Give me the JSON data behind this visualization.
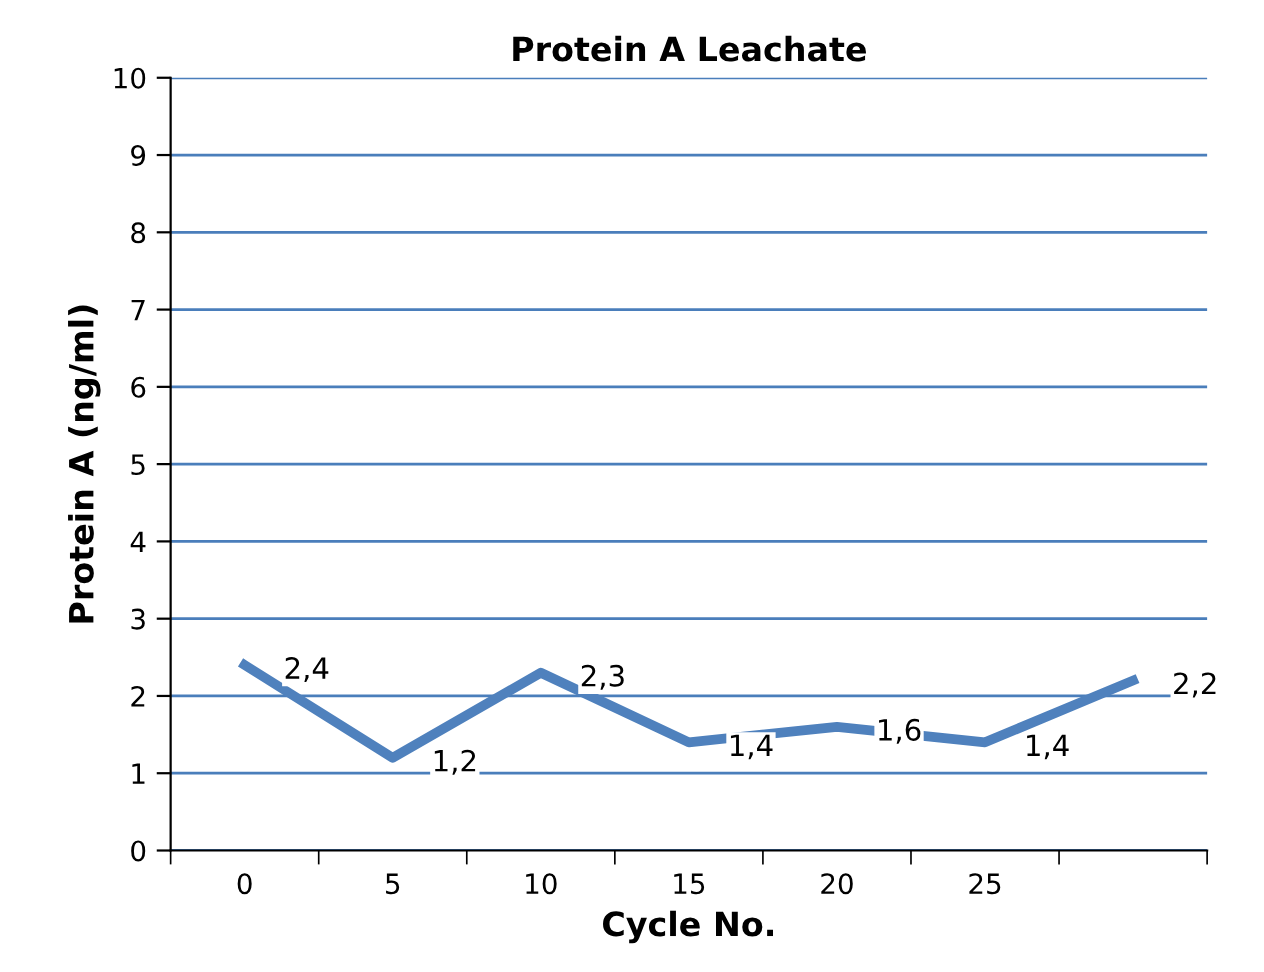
{
  "chart_data": {
    "type": "line",
    "title": "Protein A Leachate",
    "xlabel": "Cycle No.",
    "ylabel": "Protein A (ng/ml)",
    "categories": [
      "0",
      "5",
      "10",
      "15",
      "20",
      "25",
      null
    ],
    "series": [
      {
        "color": "#4f81bd",
        "values": [
          2.4,
          1.2,
          2.3,
          1.4,
          1.6,
          1.4,
          2.2
        ],
        "value_labels": [
          "2,4",
          "1,2",
          "2,3",
          "1,4",
          "1,6",
          "1,4",
          "2,2"
        ]
      }
    ],
    "ylim": [
      0,
      10
    ],
    "yticks": [
      0,
      1,
      2,
      3,
      4,
      5,
      6,
      7,
      8,
      9,
      10
    ],
    "grid": "y",
    "legend": false,
    "marker": "none",
    "line_style": "solid"
  }
}
